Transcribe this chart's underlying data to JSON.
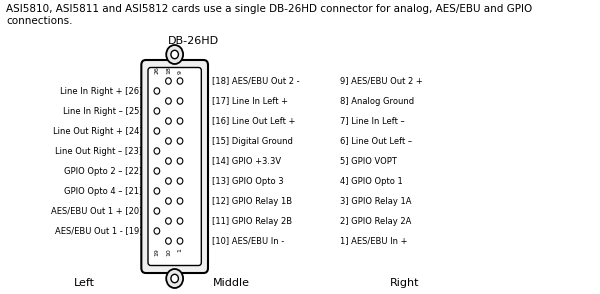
{
  "title_text": "ASI5810, ASI5811 and ASI5812 cards use a single DB-26HD connector for analog, AES/EBU and GPIO\nconnections.",
  "connector_label": "DB-26HD",
  "left_label": "Left",
  "middle_label": "Middle",
  "right_label": "Right",
  "left_pins": [
    "Line In Right + [26]",
    "Line In Right – [25]",
    "Line Out Right + [24]",
    "Line Out Right – [23]",
    "GPIO Opto 2 – [22]",
    "GPIO Opto 4 – [21]",
    "AES/EBU Out 1 + [20]",
    "AES/EBU Out 1 - [19]"
  ],
  "middle_pins": [
    "[18] AES/EBU Out 2 -",
    "[17] Line In Left +",
    "[16] Line Out Left +",
    "[15] Digital Ground",
    "[14] GPIO +3.3V",
    "[13] GPIO Opto 3",
    "[12] GPIO Relay 1B",
    "[11] GPIO Relay 2B",
    "[10] AES/EBU In -"
  ],
  "right_pins": [
    "9] AES/EBU Out 2 +",
    "8] Analog Ground",
    "7] Line In Left –",
    "6] Line Out Left –",
    "5] GPIO VOPT",
    "4] GPIO Opto 1",
    "3] GPIO Relay 1A",
    "2] GPIO Relay 2A",
    "1] AES/EBU In +"
  ],
  "row_numbers_top": [
    "9",
    "18",
    "26"
  ],
  "row_numbers_bottom": [
    "1",
    "10",
    "19"
  ],
  "bg_color": "#ffffff",
  "text_color": "#000000",
  "connector_color": "#000000",
  "dot_color": "#000000"
}
